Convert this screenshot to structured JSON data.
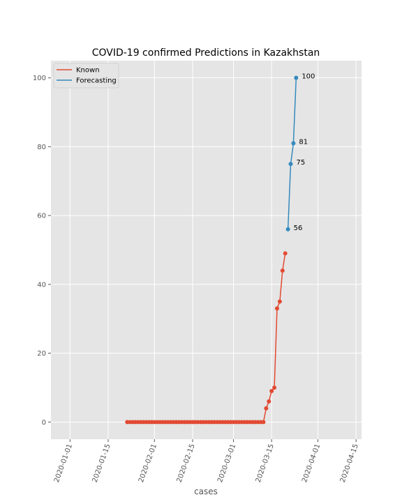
{
  "chart_data": {
    "type": "line",
    "title": "COVID-19 confirmed Predictions in Kazakhstan",
    "xlabel": "cases",
    "ylabel": "",
    "xlim": [
      "2019-12-25",
      "2020-04-17"
    ],
    "ylim": [
      -5,
      105
    ],
    "x_ticks": [
      "2020-01-01",
      "2020-01-15",
      "2020-02-01",
      "2020-02-15",
      "2020-03-01",
      "2020-03-15",
      "2020-04-01",
      "2020-04-15"
    ],
    "y_ticks": [
      0,
      20,
      40,
      60,
      80,
      100
    ],
    "grid": true,
    "legend_position": "top-left",
    "series": [
      {
        "name": "Known",
        "color": "#E24A33",
        "points": [
          [
            "2020-01-22",
            0
          ],
          [
            "2020-01-23",
            0
          ],
          [
            "2020-01-24",
            0
          ],
          [
            "2020-01-25",
            0
          ],
          [
            "2020-01-26",
            0
          ],
          [
            "2020-01-27",
            0
          ],
          [
            "2020-01-28",
            0
          ],
          [
            "2020-01-29",
            0
          ],
          [
            "2020-01-30",
            0
          ],
          [
            "2020-01-31",
            0
          ],
          [
            "2020-02-01",
            0
          ],
          [
            "2020-02-02",
            0
          ],
          [
            "2020-02-03",
            0
          ],
          [
            "2020-02-04",
            0
          ],
          [
            "2020-02-05",
            0
          ],
          [
            "2020-02-06",
            0
          ],
          [
            "2020-02-07",
            0
          ],
          [
            "2020-02-08",
            0
          ],
          [
            "2020-02-09",
            0
          ],
          [
            "2020-02-10",
            0
          ],
          [
            "2020-02-11",
            0
          ],
          [
            "2020-02-12",
            0
          ],
          [
            "2020-02-13",
            0
          ],
          [
            "2020-02-14",
            0
          ],
          [
            "2020-02-15",
            0
          ],
          [
            "2020-02-16",
            0
          ],
          [
            "2020-02-17",
            0
          ],
          [
            "2020-02-18",
            0
          ],
          [
            "2020-02-19",
            0
          ],
          [
            "2020-02-20",
            0
          ],
          [
            "2020-02-21",
            0
          ],
          [
            "2020-02-22",
            0
          ],
          [
            "2020-02-23",
            0
          ],
          [
            "2020-02-24",
            0
          ],
          [
            "2020-02-25",
            0
          ],
          [
            "2020-02-26",
            0
          ],
          [
            "2020-02-27",
            0
          ],
          [
            "2020-02-28",
            0
          ],
          [
            "2020-02-29",
            0
          ],
          [
            "2020-03-01",
            0
          ],
          [
            "2020-03-02",
            0
          ],
          [
            "2020-03-03",
            0
          ],
          [
            "2020-03-04",
            0
          ],
          [
            "2020-03-05",
            0
          ],
          [
            "2020-03-06",
            0
          ],
          [
            "2020-03-07",
            0
          ],
          [
            "2020-03-08",
            0
          ],
          [
            "2020-03-09",
            0
          ],
          [
            "2020-03-10",
            0
          ],
          [
            "2020-03-11",
            0
          ],
          [
            "2020-03-12",
            0
          ],
          [
            "2020-03-13",
            4
          ],
          [
            "2020-03-14",
            6
          ],
          [
            "2020-03-15",
            9
          ],
          [
            "2020-03-16",
            10
          ],
          [
            "2020-03-17",
            33
          ],
          [
            "2020-03-18",
            35
          ],
          [
            "2020-03-19",
            44
          ],
          [
            "2020-03-20",
            49
          ]
        ]
      },
      {
        "name": "Forecasting",
        "color": "#348ABD",
        "points": [
          [
            "2020-03-21",
            56
          ],
          [
            "2020-03-22",
            75
          ],
          [
            "2020-03-23",
            81
          ],
          [
            "2020-03-24",
            100
          ]
        ],
        "annotations": [
          "56",
          "75",
          "81",
          "100"
        ]
      }
    ]
  }
}
